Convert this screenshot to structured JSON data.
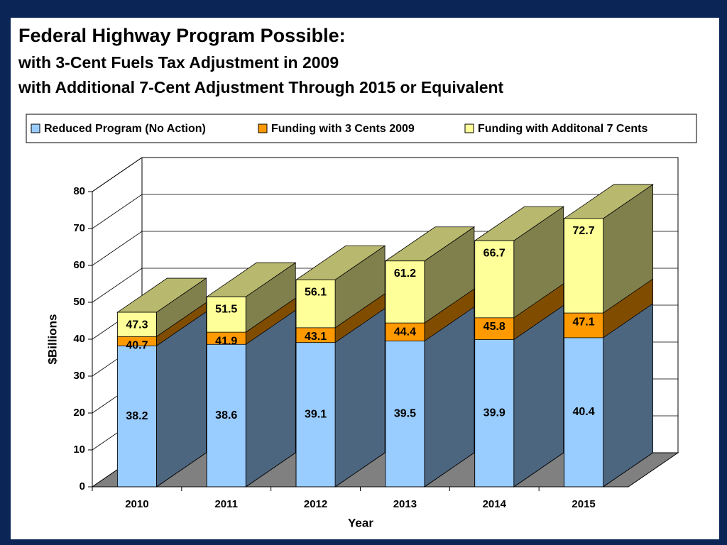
{
  "chart_data": {
    "type": "bar",
    "title": "Federal Highway Program Possible:",
    "subtitle": [
      "with 3-Cent Fuels Tax Adjustment in 2009",
      "with Additional 7-Cent Adjustment Through 2015 or Equivalent"
    ],
    "x_label": "Year",
    "y_label": "$Billions",
    "categories": [
      "2010",
      "2011",
      "2012",
      "2013",
      "2014",
      "2015"
    ],
    "series": [
      {
        "name": "Reduced Program (No Action)",
        "color": "#99ccff",
        "values": [
          38.2,
          38.6,
          39.1,
          39.5,
          39.9,
          40.4
        ]
      },
      {
        "name": "Funding with 3 Cents 2009",
        "color": "#ff9900",
        "values": [
          40.7,
          41.9,
          43.1,
          44.4,
          45.8,
          47.1
        ]
      },
      {
        "name": "Funding with Additonal 7 Cents",
        "color": "#ffff99",
        "values": [
          47.3,
          51.5,
          56.1,
          61.2,
          66.7,
          72.7
        ]
      }
    ],
    "ylim": [
      0,
      80
    ],
    "yticks": [
      0,
      10,
      20,
      30,
      40,
      50,
      60,
      70,
      80
    ],
    "grid": true
  }
}
